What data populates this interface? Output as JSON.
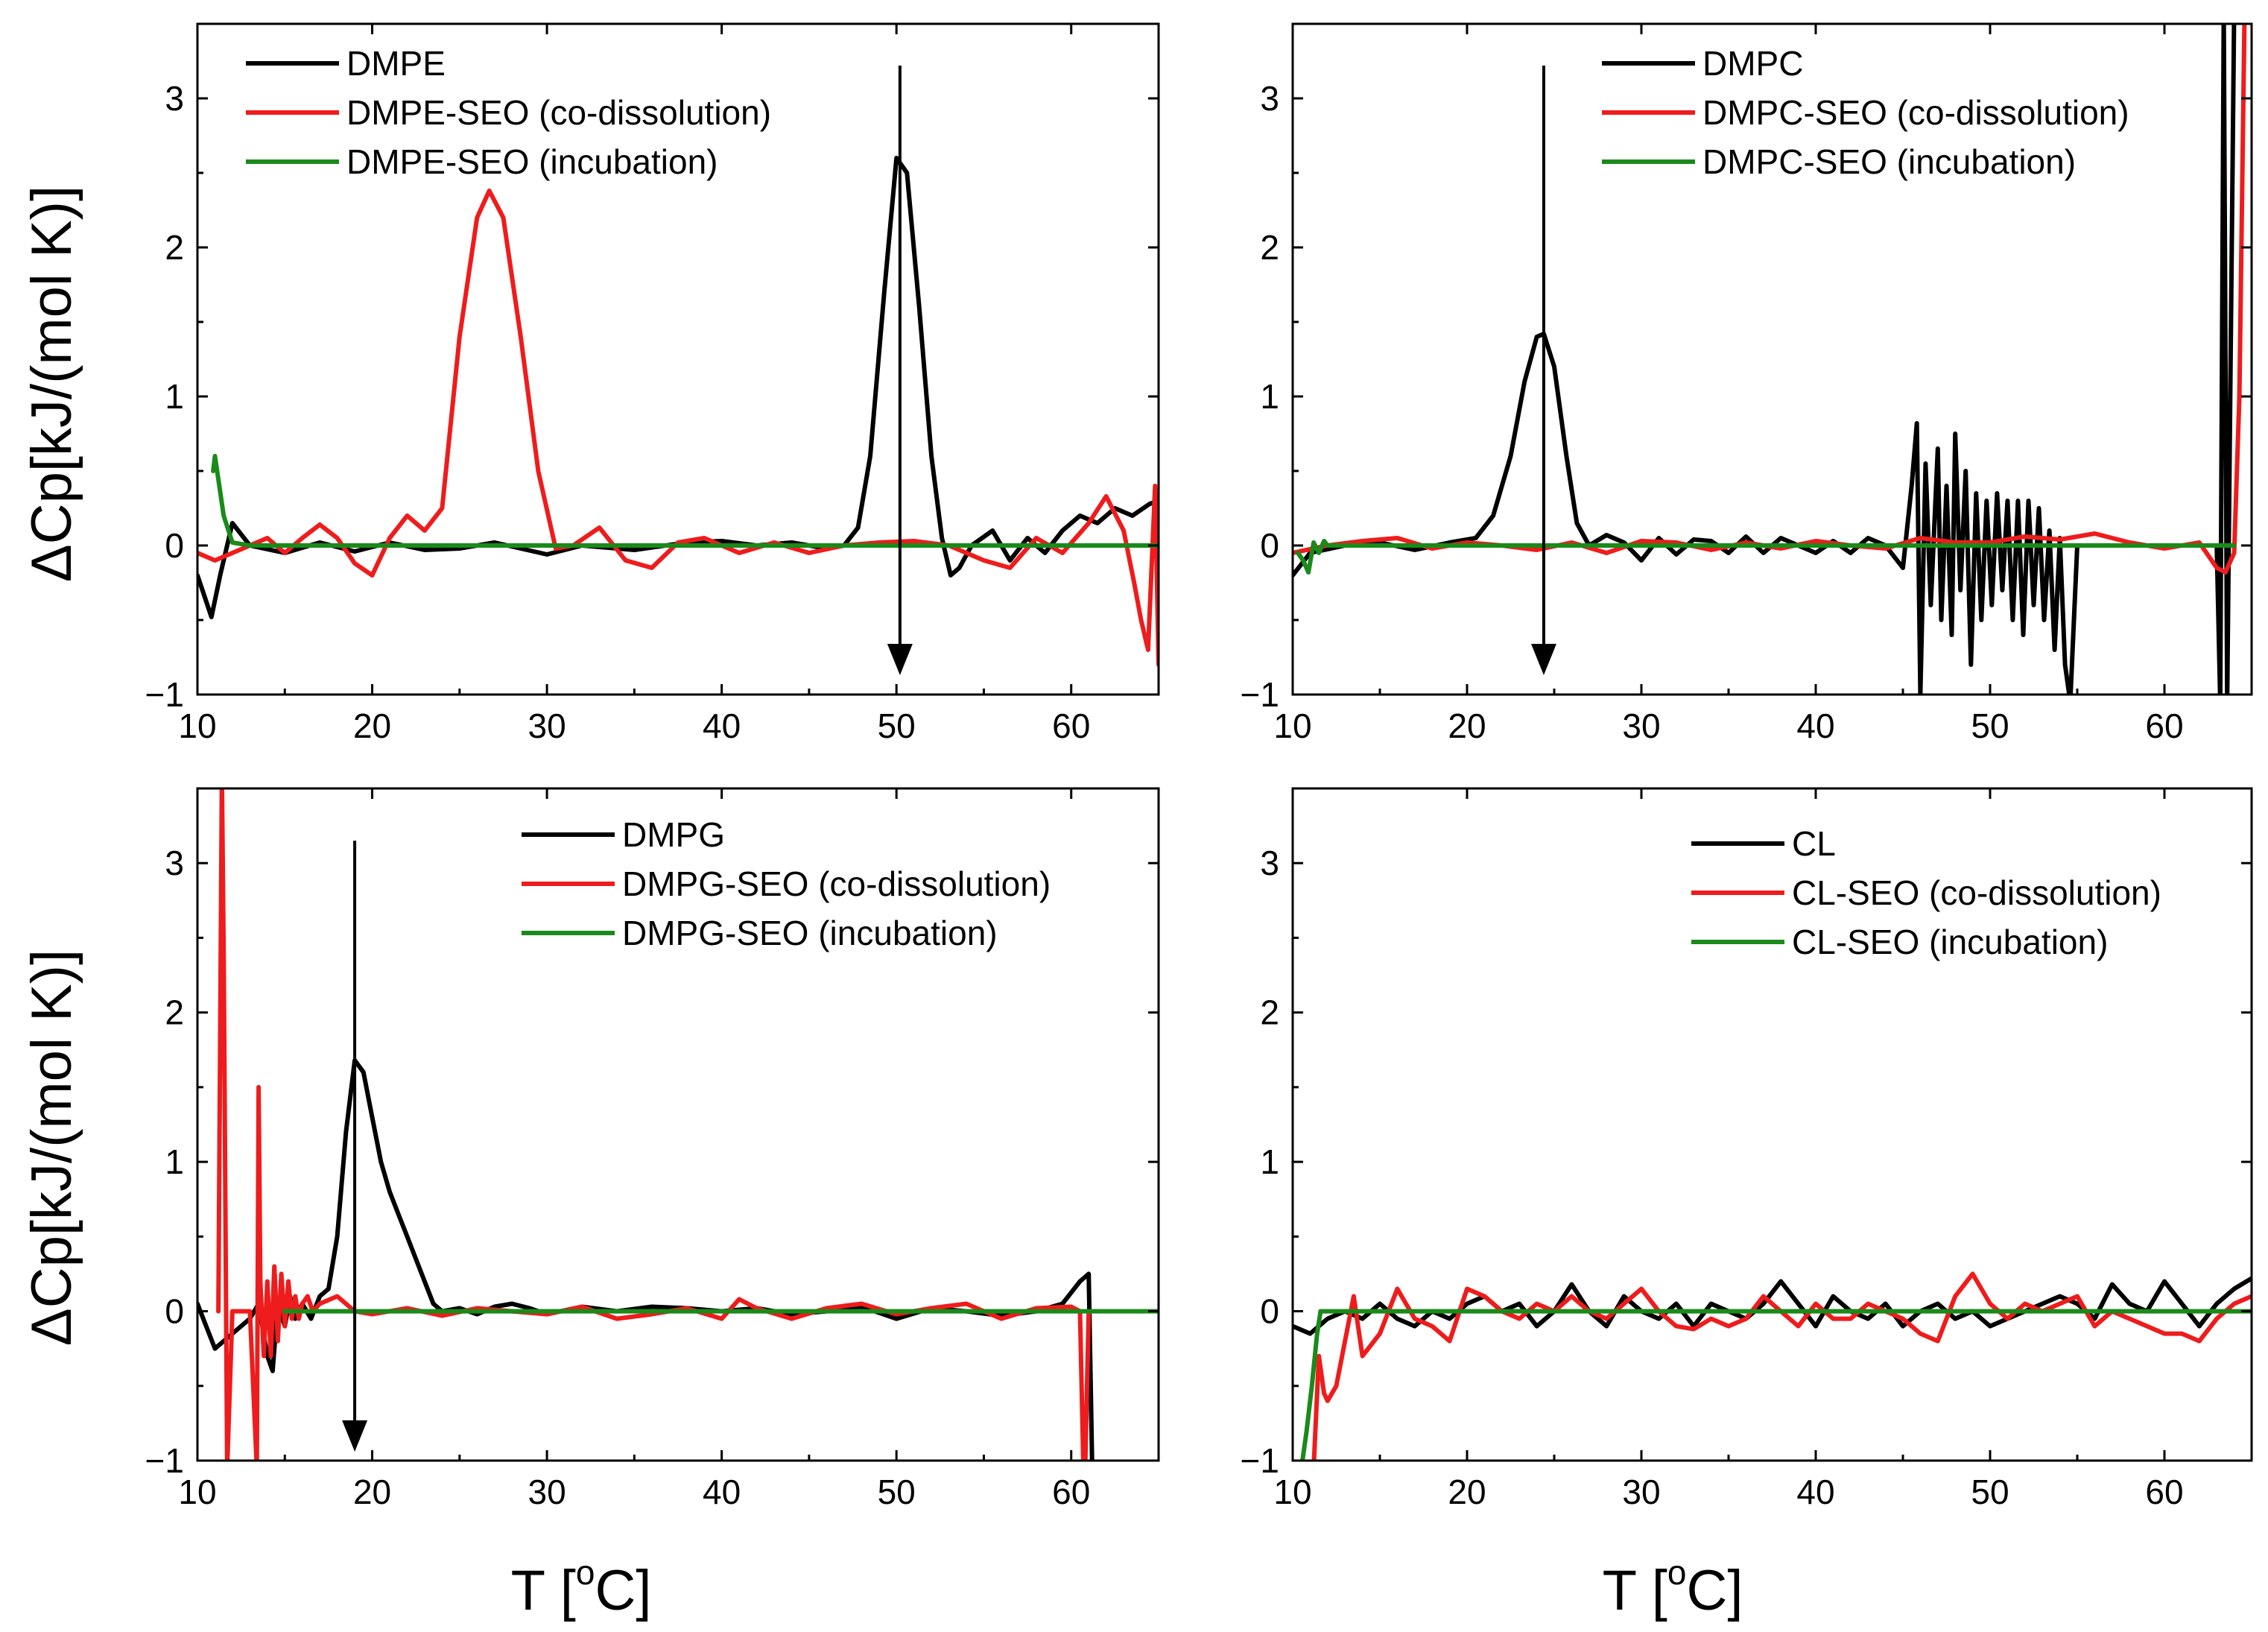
{
  "figure": {
    "ylabel": "ΔCp[kJ/(mol K)]",
    "xlabel_prefix": "T [",
    "xlabel_sup": "o",
    "xlabel_suffix": "C]"
  },
  "colors": {
    "black": "#000000",
    "red": "#ee1c1c",
    "green": "#1a8a1a"
  },
  "chart_data": [
    {
      "type": "line",
      "panel": "top-left",
      "xlim": [
        10,
        65
      ],
      "ylim": [
        -1,
        3.5
      ],
      "xticks": [
        10,
        20,
        30,
        40,
        50,
        60
      ],
      "yticks": [
        -1,
        0,
        1,
        2,
        3
      ],
      "legend_position": "top-left",
      "arrow": {
        "x": 50.2,
        "y_from": 3.22,
        "y_to": -0.85
      },
      "series": [
        {
          "name": "DMPE",
          "color": "black",
          "x": [
            10,
            10.8,
            11.3,
            12,
            13,
            15,
            17,
            19,
            21,
            23,
            25,
            27,
            30,
            32,
            35,
            38,
            40,
            42,
            44,
            46,
            47,
            47.8,
            48.5,
            49.3,
            50,
            50.6,
            51.3,
            52,
            52.6,
            53.1,
            53.6,
            54.3,
            55.5,
            56.5,
            57.5,
            58.5,
            59.5,
            60.5,
            61.5,
            62.5,
            63.5,
            64.5,
            65
          ],
          "values": [
            -0.2,
            -0.48,
            -0.2,
            0.15,
            0,
            -0.05,
            0.02,
            -0.04,
            0.02,
            -0.03,
            -0.02,
            0.02,
            -0.06,
            0,
            -0.03,
            0.02,
            0.03,
            0,
            0.02,
            -0.02,
            0,
            0.12,
            0.6,
            1.7,
            2.6,
            2.5,
            1.6,
            0.6,
            0.05,
            -0.2,
            -0.15,
            0,
            0.1,
            -0.1,
            0.05,
            -0.05,
            0.1,
            0.2,
            0.15,
            0.25,
            0.2,
            0.28,
            0.3
          ]
        },
        {
          "name": "DMPE-SEO (co-dissolution)",
          "color": "red",
          "x": [
            10,
            11,
            12,
            13,
            14,
            15,
            16,
            17,
            18,
            19,
            20,
            21,
            22,
            23,
            24,
            25,
            26,
            26.7,
            27.5,
            28.5,
            29.5,
            30.5,
            31.5,
            33,
            34.5,
            36,
            37.5,
            39,
            41,
            43,
            45,
            47,
            49,
            51,
            53,
            55,
            56.5,
            58,
            59.5,
            61,
            62,
            63,
            63.6,
            64,
            64.4,
            64.8,
            65
          ],
          "values": [
            -0.05,
            -0.1,
            -0.05,
            0,
            0.05,
            -0.05,
            0.05,
            0.14,
            0.05,
            -0.12,
            -0.2,
            0.05,
            0.2,
            0.1,
            0.25,
            1.4,
            2.2,
            2.38,
            2.2,
            1.4,
            0.5,
            -0.02,
            0,
            0.12,
            -0.1,
            -0.15,
            0.02,
            0.05,
            -0.05,
            0.02,
            -0.05,
            0,
            0.02,
            0.03,
            0,
            -0.1,
            -0.15,
            0.05,
            -0.05,
            0.15,
            0.33,
            0.1,
            -0.25,
            -0.5,
            -0.7,
            0.4,
            -0.8
          ]
        },
        {
          "name": "DMPE-SEO (incubation)",
          "color": "green",
          "x": [
            10.9,
            11,
            11.5,
            12,
            13,
            20,
            30,
            40,
            50,
            60,
            65
          ],
          "values": [
            0.5,
            0.6,
            0.2,
            0.02,
            0,
            0,
            0,
            0,
            0,
            0,
            0
          ]
        }
      ]
    },
    {
      "type": "line",
      "panel": "top-right",
      "xlim": [
        10,
        65
      ],
      "ylim": [
        -1,
        3.5
      ],
      "xticks": [
        10,
        20,
        30,
        40,
        50,
        60
      ],
      "yticks": [
        -1,
        0,
        1,
        2,
        3
      ],
      "legend_position": "top-right",
      "arrow": {
        "x": 24.4,
        "y_from": 3.22,
        "y_to": -0.85
      },
      "series": [
        {
          "name": "DMPC",
          "color": "black",
          "x": [
            10,
            11,
            13,
            15,
            17,
            19,
            20.5,
            21.5,
            22.5,
            23.3,
            24,
            24.4,
            25,
            25.7,
            26.3,
            27,
            28,
            29,
            30,
            31,
            32,
            33,
            34,
            35,
            36,
            37,
            38,
            39,
            40,
            41,
            42,
            43,
            44,
            45,
            45.5,
            45.8,
            46,
            46.3,
            46.6,
            47,
            47.2,
            47.5,
            47.8,
            48,
            48.3,
            48.6,
            48.9,
            49.2,
            49.5,
            49.8,
            50.1,
            50.4,
            50.7,
            51,
            51.3,
            51.6,
            51.9,
            52.2,
            52.5,
            52.8,
            53.1,
            53.4,
            53.7,
            54,
            54.3,
            54.6,
            55,
            56,
            57,
            58,
            59,
            60,
            61,
            62,
            63,
            63.2,
            63.4,
            63.6,
            64,
            64.5,
            65
          ],
          "values": [
            -0.2,
            -0.05,
            0,
            0.02,
            -0.03,
            0.02,
            0.05,
            0.2,
            0.6,
            1.1,
            1.4,
            1.42,
            1.2,
            0.6,
            0.15,
            0,
            0.07,
            0.02,
            -0.1,
            0.05,
            -0.06,
            0.04,
            0.03,
            -0.05,
            0.06,
            -0.05,
            0.05,
            0,
            -0.05,
            0.03,
            -0.05,
            0.05,
            0,
            -0.15,
            0.4,
            0.82,
            -1.0,
            0.55,
            -0.4,
            0.65,
            -0.5,
            0.4,
            -0.6,
            0.75,
            -0.3,
            0.5,
            -0.8,
            0.35,
            -0.5,
            0.3,
            -0.4,
            0.35,
            -0.3,
            0.3,
            -0.5,
            0.3,
            -0.6,
            0.3,
            -0.4,
            0.25,
            -0.5,
            0.1,
            -0.7,
            0.05,
            -0.8,
            -1.05,
            0,
            0,
            0,
            0,
            0,
            0,
            0,
            0,
            0,
            -1.05,
            3.6,
            -1.05,
            3.6,
            3.6,
            3.6
          ]
        },
        {
          "name": "DMPC-SEO (co-dissolution)",
          "color": "red",
          "x": [
            10,
            12,
            14,
            16,
            18,
            20,
            22,
            24,
            26,
            28,
            30,
            32,
            34,
            36,
            38,
            40,
            42,
            44,
            46,
            48,
            50,
            52,
            54,
            56,
            58,
            60,
            62,
            63,
            63.5,
            64,
            64.3,
            64.6,
            65
          ],
          "values": [
            -0.05,
            0,
            0.03,
            0.05,
            -0.02,
            0.02,
            0,
            -0.03,
            0.02,
            -0.05,
            0.03,
            0.02,
            -0.03,
            0.02,
            -0.02,
            0.03,
            0,
            -0.02,
            0.05,
            0.02,
            0.02,
            0.06,
            0.04,
            0.08,
            0.02,
            -0.02,
            0.02,
            -0.15,
            -0.18,
            -0.05,
            1.0,
            3.6,
            3.6
          ]
        },
        {
          "name": "DMPC-SEO (incubation)",
          "color": "green",
          "x": [
            10.3,
            10.6,
            10.9,
            11.2,
            11.5,
            11.8,
            12,
            20,
            30,
            40,
            50,
            60,
            64
          ],
          "values": [
            -0.05,
            -0.1,
            -0.18,
            0.02,
            -0.05,
            0.03,
            0,
            0,
            0,
            0,
            0,
            0,
            0
          ]
        }
      ]
    },
    {
      "type": "line",
      "panel": "bottom-left",
      "xlim": [
        10,
        65
      ],
      "ylim": [
        -1,
        3.5
      ],
      "xticks": [
        10,
        20,
        30,
        40,
        50,
        60
      ],
      "yticks": [
        -1,
        0,
        1,
        2,
        3
      ],
      "legend_position": "top-right",
      "arrow": {
        "x": 19,
        "y_from": 3.15,
        "y_to": -0.92
      },
      "series": [
        {
          "name": "DMPG",
          "color": "black",
          "x": [
            10,
            10.5,
            11,
            11.5,
            12,
            12.5,
            13,
            13.5,
            14,
            14.3,
            14.6,
            15,
            15.3,
            15.6,
            16,
            16.5,
            17,
            17.5,
            18,
            18.5,
            19,
            19.5,
            20,
            20.5,
            21,
            21.5,
            22,
            22.5,
            23,
            23.5,
            24,
            25,
            26,
            27,
            28,
            29,
            30,
            32,
            34,
            36,
            38,
            40,
            42,
            44,
            46,
            48,
            50,
            52,
            54,
            56,
            58,
            59.5,
            60.5,
            61,
            61.2
          ],
          "values": [
            0.05,
            -0.1,
            -0.25,
            -0.2,
            -0.15,
            -0.1,
            -0.05,
            0.05,
            -0.3,
            -0.4,
            0.05,
            -0.1,
            0.1,
            -0.05,
            0.05,
            -0.05,
            0.1,
            0.15,
            0.5,
            1.2,
            1.68,
            1.6,
            1.3,
            1.0,
            0.8,
            0.65,
            0.5,
            0.35,
            0.2,
            0.05,
            0,
            0.02,
            -0.02,
            0.03,
            0.05,
            0.02,
            -0.02,
            0.03,
            0,
            0.03,
            0.02,
            0,
            0.02,
            -0.02,
            0,
            0.03,
            -0.05,
            0.02,
            0,
            -0.03,
            0,
            0.05,
            0.2,
            0.25,
            -1.05
          ]
        },
        {
          "name": "DMPG-SEO (co-dissolution)",
          "color": "red",
          "x": [
            11.2,
            11.4,
            11.5,
            11.7,
            12,
            13,
            13.4,
            13.5,
            13.6,
            13.8,
            14,
            14.2,
            14.4,
            14.6,
            14.8,
            15,
            15.2,
            15.4,
            15.6,
            15.8,
            16,
            16.3,
            16.6,
            17,
            18,
            19,
            20,
            22,
            24,
            26,
            28,
            30,
            32,
            34,
            36,
            38,
            40,
            41,
            42,
            44,
            46,
            48,
            50,
            52,
            54,
            56,
            58,
            60,
            60.5,
            60.7,
            60.8,
            61
          ],
          "values": [
            0,
            3.6,
            2.4,
            -1.05,
            0,
            0,
            -1.05,
            1.5,
            0.2,
            -0.3,
            0.2,
            -0.3,
            0.3,
            -0.2,
            0.25,
            -0.1,
            0.2,
            -0.05,
            0.1,
            -0.05,
            0.05,
            0.1,
            0,
            0.05,
            0.1,
            0,
            -0.02,
            0.02,
            -0.03,
            0.02,
            0,
            -0.02,
            0.03,
            -0.05,
            -0.02,
            0.02,
            -0.05,
            0.08,
            0.02,
            -0.05,
            0.02,
            0.05,
            -0.02,
            0.02,
            0.05,
            -0.05,
            0.02,
            0.03,
            0,
            -1.05,
            -1.05,
            0
          ]
        },
        {
          "name": "DMPG-SEO (incubation)",
          "color": "green",
          "x": [
            15,
            20,
            30,
            40,
            50,
            60,
            65
          ],
          "values": [
            0,
            0,
            0,
            0,
            0,
            0,
            0
          ]
        }
      ]
    },
    {
      "type": "line",
      "panel": "bottom-right",
      "xlim": [
        10,
        65
      ],
      "ylim": [
        -1,
        3.5
      ],
      "xticks": [
        10,
        20,
        30,
        40,
        50,
        60
      ],
      "yticks": [
        -1,
        0,
        1,
        2,
        3
      ],
      "legend_position": "top-right",
      "series": [
        {
          "name": "CL",
          "color": "black",
          "x": [
            10,
            11,
            12,
            13,
            14,
            15,
            16,
            17,
            18,
            19,
            20,
            21,
            22,
            23,
            24,
            25,
            26,
            27,
            28,
            29,
            30,
            31,
            32,
            33,
            34,
            35,
            36,
            37,
            38,
            39,
            40,
            41,
            42,
            43,
            44,
            45,
            46,
            47,
            48,
            49,
            50,
            51,
            52,
            53,
            54,
            55,
            56,
            57,
            58,
            59,
            60,
            61,
            62,
            63,
            64,
            65
          ],
          "values": [
            -0.1,
            -0.15,
            -0.05,
            0,
            -0.05,
            0.05,
            -0.05,
            -0.1,
            0,
            -0.05,
            0.05,
            0.1,
            0,
            0.05,
            -0.1,
            0,
            0.18,
            0,
            -0.1,
            0.1,
            0,
            -0.05,
            0.05,
            -0.1,
            0.05,
            0,
            -0.05,
            0.05,
            0.2,
            0.05,
            -0.1,
            0.1,
            0,
            -0.05,
            0.05,
            -0.1,
            0,
            0.05,
            -0.05,
            0,
            -0.1,
            -0.05,
            0,
            0.05,
            0.1,
            0.05,
            -0.05,
            0.18,
            0.05,
            0,
            0.2,
            0.05,
            -0.1,
            0.05,
            0.15,
            0.22
          ]
        },
        {
          "name": "CL-SEO (co-dissolution)",
          "color": "red",
          "x": [
            11.2,
            11.5,
            11.8,
            12,
            12.5,
            13,
            13.5,
            14,
            15,
            16,
            17,
            18,
            19,
            20,
            21,
            22,
            23,
            24,
            25,
            26,
            27,
            28,
            29,
            30,
            31,
            32,
            33,
            34,
            35,
            36,
            37,
            38,
            39,
            40,
            41,
            42,
            43,
            44,
            45,
            46,
            47,
            48,
            49,
            50,
            51,
            52,
            53,
            54,
            55,
            56,
            57,
            58,
            59,
            60,
            61,
            62,
            63,
            64,
            65
          ],
          "values": [
            -1.05,
            -0.3,
            -0.55,
            -0.6,
            -0.5,
            -0.2,
            0.1,
            -0.3,
            -0.15,
            0.15,
            -0.05,
            -0.1,
            -0.2,
            0.15,
            0.1,
            0,
            -0.05,
            0.05,
            0,
            0.1,
            0,
            -0.05,
            0.05,
            0.15,
            0,
            -0.1,
            -0.12,
            -0.05,
            -0.1,
            -0.05,
            0.1,
            0,
            -0.1,
            0.05,
            -0.05,
            -0.05,
            0.05,
            0,
            -0.05,
            -0.15,
            -0.2,
            0.1,
            0.25,
            0.05,
            -0.05,
            0.05,
            0,
            0.05,
            0.1,
            -0.1,
            0,
            -0.05,
            -0.1,
            -0.15,
            -0.15,
            -0.2,
            -0.05,
            0.05,
            0.1
          ]
        },
        {
          "name": "CL-SEO (incubation)",
          "color": "green",
          "x": [
            10.5,
            10.8,
            11.1,
            11.4,
            11.6,
            12,
            20,
            30,
            40,
            50,
            60,
            65
          ],
          "values": [
            -1.05,
            -0.8,
            -0.5,
            -0.15,
            0,
            0,
            0,
            0,
            0,
            0,
            0,
            0
          ]
        }
      ]
    }
  ]
}
